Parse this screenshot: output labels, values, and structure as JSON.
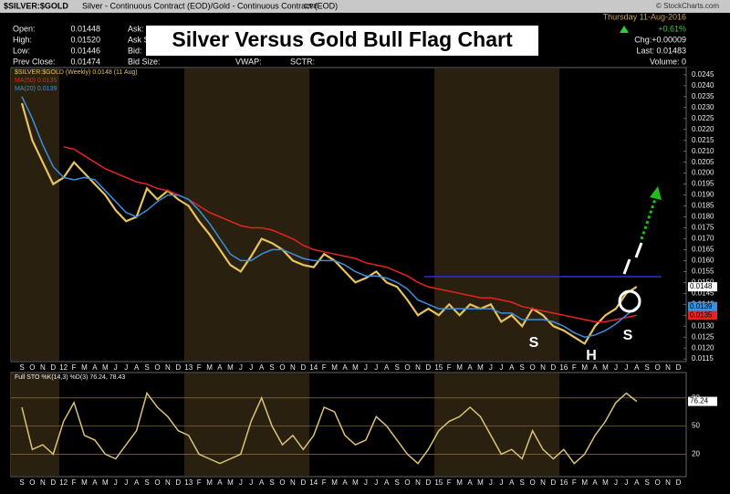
{
  "header": {
    "symbol": "$SILVER:$GOLD",
    "description": "Silver - Continuous Contract (EOD)/Gold - Continuous Contract (EOD)",
    "exchange": "CME",
    "date": "Thursday 11-Aug-2016",
    "copyright": "© StockCharts.com",
    "fields": [
      [
        "Open:",
        "0.01448"
      ],
      [
        "High:",
        "0.01520"
      ],
      [
        "Low:",
        "0.01446"
      ],
      [
        "Prev Close:",
        "0.01474"
      ]
    ],
    "mid_fields": [
      "Ask:",
      "Ask Size:",
      "Bid:",
      "Bid Size:"
    ],
    "extra_fields": [
      "VWAP:",
      "SCTR:"
    ],
    "change_pct": "+0.61%",
    "change": "Chg:+0.00009",
    "last": "Last: 0.01483",
    "volume": "Volume: 0"
  },
  "chart_data": [
    {
      "type": "line",
      "title": "Silver Versus Gold Bull Flag Chart",
      "categories": [
        "S",
        "O",
        "N",
        "D",
        "12",
        "F",
        "M",
        "A",
        "M",
        "J",
        "J",
        "A",
        "S",
        "O",
        "N",
        "D",
        "13",
        "F",
        "M",
        "A",
        "M",
        "J",
        "J",
        "A",
        "S",
        "O",
        "N",
        "D",
        "14",
        "F",
        "M",
        "A",
        "M",
        "J",
        "J",
        "A",
        "S",
        "O",
        "N",
        "D",
        "15",
        "F",
        "M",
        "A",
        "M",
        "J",
        "J",
        "A",
        "S",
        "O",
        "N",
        "D",
        "16",
        "F",
        "M",
        "A",
        "M",
        "J",
        "J",
        "A",
        "S",
        "O",
        "N",
        "D"
      ],
      "series": [
        {
          "name": "$SILVER:$GOLD (Weekly) 0.0148 (11 Aug)",
          "color": "#e6c35c",
          "values": [
            0.0232,
            0.0215,
            0.0205,
            0.0195,
            0.0198,
            0.0205,
            0.02,
            0.0195,
            0.019,
            0.0183,
            0.0178,
            0.018,
            0.0193,
            0.0188,
            0.0192,
            0.0188,
            0.0185,
            0.0178,
            0.0172,
            0.0165,
            0.0158,
            0.0155,
            0.0162,
            0.017,
            0.0168,
            0.0165,
            0.016,
            0.0158,
            0.0157,
            0.0163,
            0.016,
            0.0155,
            0.015,
            0.0152,
            0.0155,
            0.015,
            0.0148,
            0.0142,
            0.0135,
            0.0138,
            0.0135,
            0.014,
            0.0135,
            0.014,
            0.0138,
            0.014,
            0.0132,
            0.0135,
            0.013,
            0.0138,
            0.0135,
            0.013,
            0.0128,
            0.0125,
            0.0122,
            0.013,
            0.0135,
            0.0138,
            0.0145,
            0.0148,
            null,
            null,
            null,
            null
          ]
        },
        {
          "name": "MA(50) 0.0135",
          "color": "#e8221f",
          "values": [
            null,
            null,
            null,
            null,
            0.0212,
            0.0211,
            0.0208,
            0.0205,
            0.0202,
            0.02,
            0.0198,
            0.0196,
            0.0195,
            0.0193,
            0.0192,
            0.019,
            0.0188,
            0.0185,
            0.0182,
            0.018,
            0.0178,
            0.0176,
            0.0175,
            0.0175,
            0.0174,
            0.0172,
            0.017,
            0.0167,
            0.0165,
            0.0164,
            0.0163,
            0.0162,
            0.0161,
            0.0159,
            0.0158,
            0.0157,
            0.0155,
            0.0153,
            0.015,
            0.0148,
            0.0147,
            0.0146,
            0.0145,
            0.0144,
            0.0143,
            0.0143,
            0.0142,
            0.0141,
            0.0139,
            0.0138,
            0.0137,
            0.0136,
            0.0135,
            0.0134,
            0.0133,
            0.0132,
            0.0132,
            0.0133,
            0.0134,
            0.0135,
            null,
            null,
            null,
            null
          ]
        },
        {
          "name": "MA(20) 0.0139",
          "color": "#3a8fdc",
          "values": [
            0.0235,
            0.0225,
            0.0213,
            0.0203,
            0.0198,
            0.0197,
            0.0198,
            0.0197,
            0.0192,
            0.0187,
            0.0182,
            0.018,
            0.0183,
            0.0187,
            0.019,
            0.019,
            0.0188,
            0.0183,
            0.0177,
            0.017,
            0.0163,
            0.016,
            0.016,
            0.0163,
            0.0165,
            0.0165,
            0.0163,
            0.0161,
            0.016,
            0.016,
            0.016,
            0.0158,
            0.0155,
            0.0153,
            0.0153,
            0.0152,
            0.015,
            0.0147,
            0.0142,
            0.014,
            0.0138,
            0.0138,
            0.0138,
            0.0138,
            0.0138,
            0.0138,
            0.0136,
            0.0136,
            0.0133,
            0.0133,
            0.0133,
            0.0132,
            0.013,
            0.0127,
            0.0125,
            0.0126,
            0.0128,
            0.0131,
            0.0135,
            0.0139,
            null,
            null,
            null,
            null
          ]
        }
      ],
      "ylim": [
        0.01138,
        0.02483
      ],
      "yticks": [
        {
          "value": 0.0115,
          "label": "0.0115"
        },
        {
          "value": 0.012,
          "label": "0.0120"
        },
        {
          "value": 0.0125,
          "label": "0.0125"
        },
        {
          "value": 0.013,
          "label": "0.0130"
        },
        {
          "value": 0.0135,
          "label": "0.0135"
        },
        {
          "value": 0.014,
          "label": "0.0140"
        },
        {
          "value": 0.0145,
          "label": "0.0145"
        },
        {
          "value": 0.015,
          "label": "0.0150"
        },
        {
          "value": 0.0155,
          "label": "0.0155"
        },
        {
          "value": 0.016,
          "label": "0.0160"
        },
        {
          "value": 0.0165,
          "label": "0.0165"
        },
        {
          "value": 0.017,
          "label": "0.0170"
        },
        {
          "value": 0.0175,
          "label": "0.0175"
        },
        {
          "value": 0.018,
          "label": "0.0180"
        },
        {
          "value": 0.0185,
          "label": "0.0185"
        },
        {
          "value": 0.019,
          "label": "0.0190"
        },
        {
          "value": 0.0195,
          "label": "0.0195"
        },
        {
          "value": 0.02,
          "label": "0.0200"
        },
        {
          "value": 0.0205,
          "label": "0.0205"
        },
        {
          "value": 0.021,
          "label": "0.0210"
        },
        {
          "value": 0.0215,
          "label": "0.0215"
        },
        {
          "value": 0.022,
          "label": "0.0220"
        },
        {
          "value": 0.0225,
          "label": "0.0225"
        },
        {
          "value": 0.023,
          "label": "0.0230"
        },
        {
          "value": 0.0235,
          "label": "0.0235"
        },
        {
          "value": 0.024,
          "label": "0.0240"
        },
        0.0245
      ],
      "annotations": [
        "S",
        "H",
        "S"
      ]
    },
    {
      "type": "line",
      "series": [
        {
          "name": "Full STO %K(14,3) %D(3) 76.24, 78.43",
          "color": "#d9c27a",
          "values": [
            70,
            25,
            30,
            20,
            55,
            75,
            40,
            35,
            20,
            15,
            30,
            45,
            85,
            70,
            60,
            45,
            40,
            20,
            15,
            10,
            15,
            20,
            55,
            80,
            50,
            30,
            40,
            25,
            40,
            70,
            65,
            40,
            30,
            35,
            60,
            50,
            35,
            20,
            10,
            25,
            45,
            55,
            60,
            70,
            60,
            40,
            20,
            25,
            15,
            45,
            25,
            15,
            25,
            10,
            20,
            40,
            55,
            75,
            85,
            76.24,
            null,
            null,
            null,
            null
          ]
        }
      ],
      "ylim": [
        -4,
        107
      ],
      "yticks": [
        20,
        50,
        80
      ],
      "grid": true
    }
  ]
}
